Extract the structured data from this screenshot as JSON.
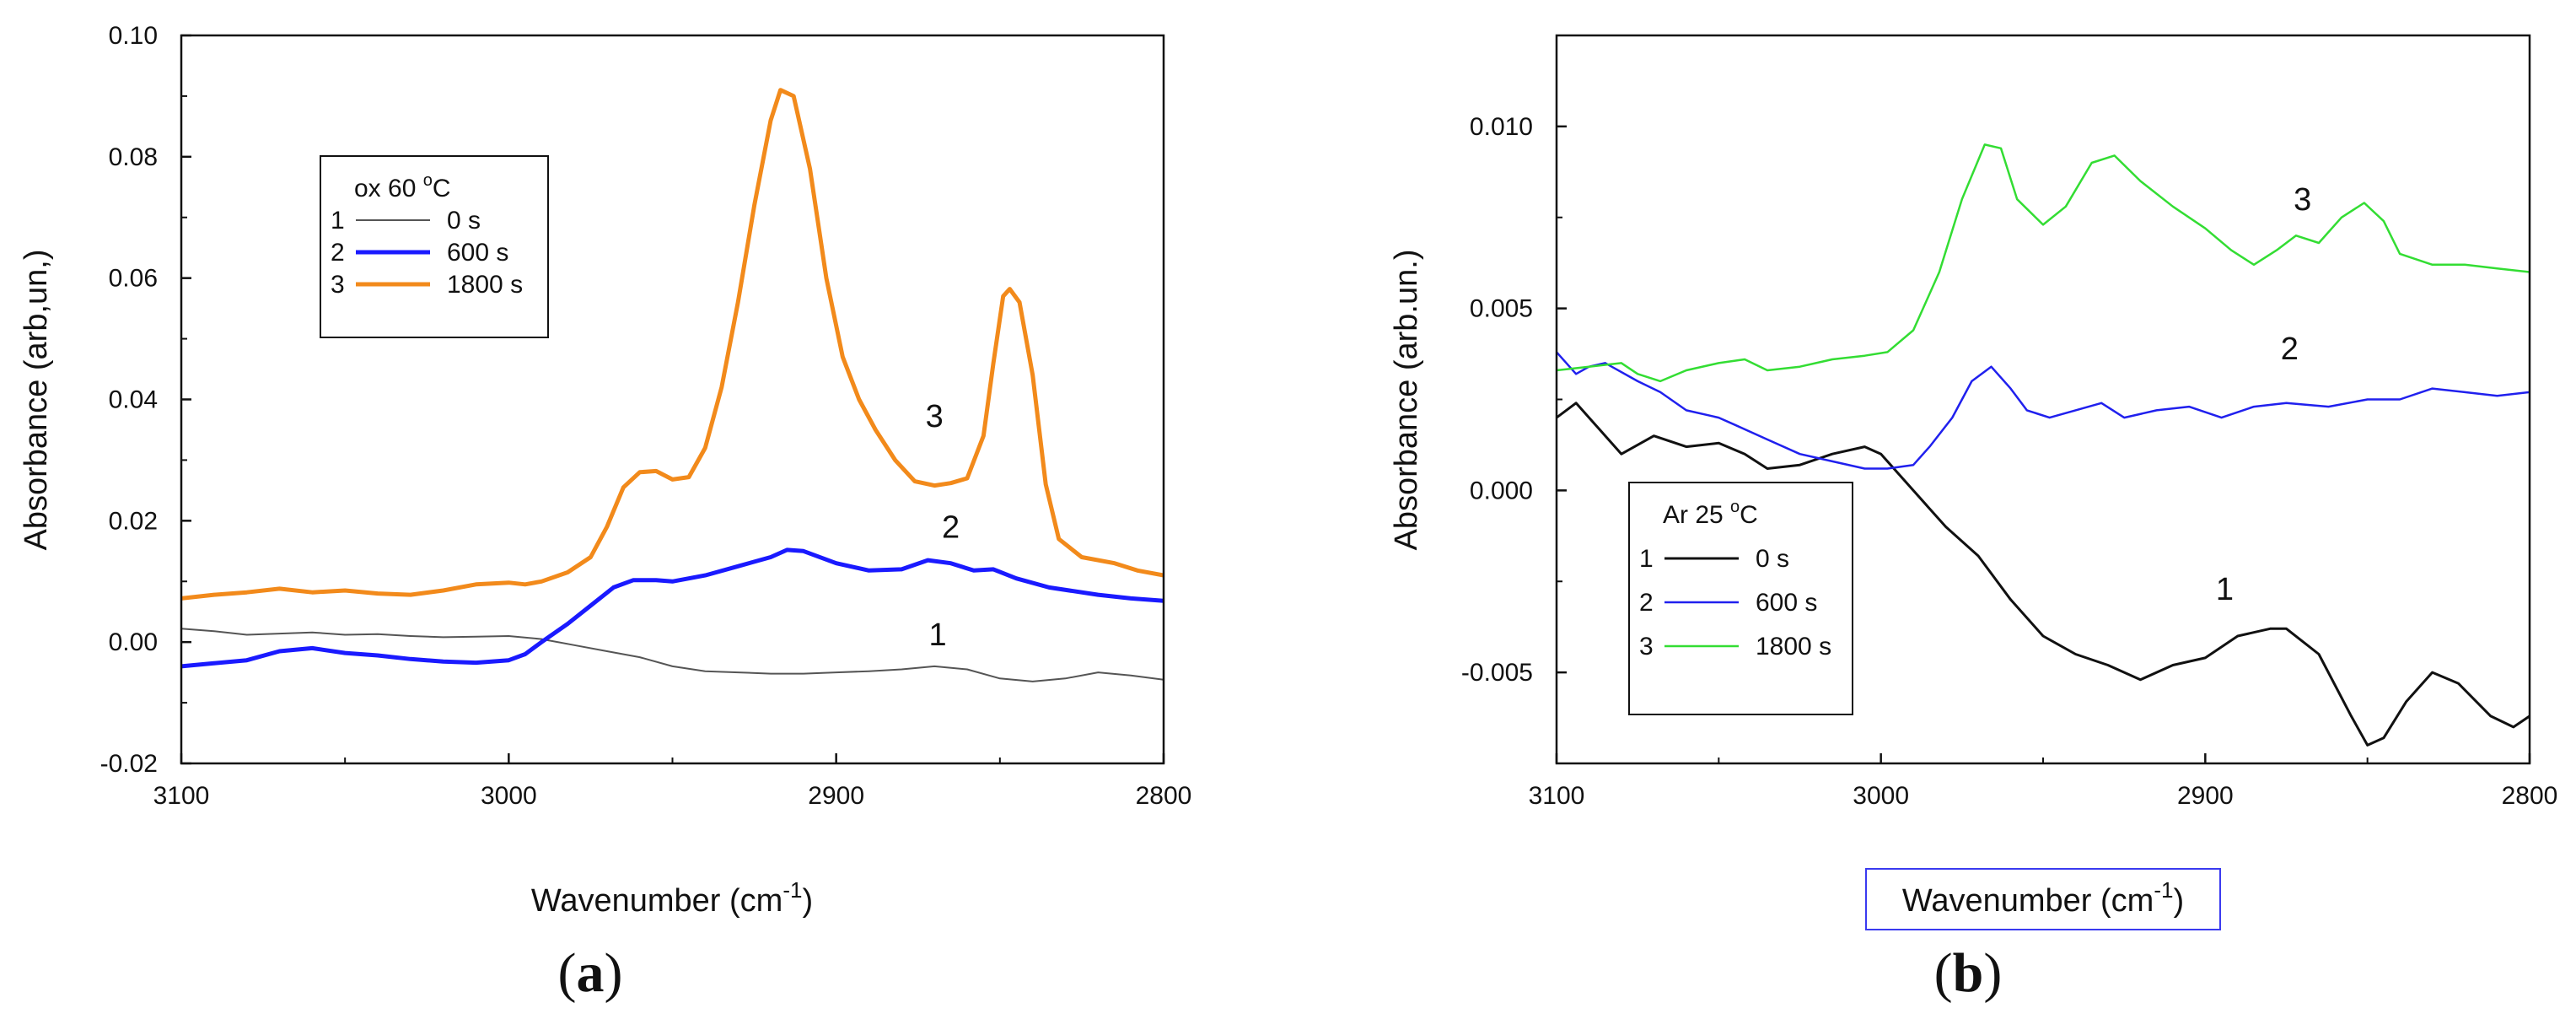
{
  "chart_data": [
    {
      "id": "a",
      "type": "line",
      "panel_label": "a",
      "title": "",
      "xlabel": "Wavenumber (cm",
      "xlabel_sup": "-1",
      "xlabel_suffix": ")",
      "ylabel": "Absorbance (arb,un,)",
      "xlim": [
        3100,
        2800
      ],
      "ylim": [
        -0.02,
        0.1
      ],
      "xticks": [
        3100,
        3000,
        2900,
        2800
      ],
      "xtick_labels": [
        "3100",
        "3000",
        "2900",
        "2800"
      ],
      "yticks": [
        -0.02,
        0.0,
        0.02,
        0.04,
        0.06,
        0.08,
        0.1
      ],
      "ytick_labels": [
        "-0.02",
        "0.00",
        "0.02",
        "0.04",
        "0.06",
        "0.08",
        "0.10"
      ],
      "legend": {
        "title": "ox 60 ",
        "title_sup": "o",
        "title_suffix": "C",
        "location": "upper-left",
        "entries": [
          {
            "number": "1",
            "label": "0 s"
          },
          {
            "number": "2",
            "label": "600 s"
          },
          {
            "number": "3",
            "label": "1800 s"
          }
        ]
      },
      "series": [
        {
          "name": "0 s",
          "number": "1",
          "label_at": [
            2869,
            -0.0005
          ],
          "color": "#555555",
          "width": 2,
          "points": [
            [
              3100,
              0.0022
            ],
            [
              3090,
              0.0018
            ],
            [
              3080,
              0.0012
            ],
            [
              3070,
              0.0014
            ],
            [
              3060,
              0.0016
            ],
            [
              3050,
              0.0012
            ],
            [
              3040,
              0.0013
            ],
            [
              3030,
              0.001
            ],
            [
              3020,
              0.0008
            ],
            [
              3010,
              0.0009
            ],
            [
              3000,
              0.001
            ],
            [
              2990,
              0.0005
            ],
            [
              2980,
              -0.0005
            ],
            [
              2970,
              -0.0015
            ],
            [
              2960,
              -0.0025
            ],
            [
              2950,
              -0.004
            ],
            [
              2940,
              -0.0048
            ],
            [
              2930,
              -0.005
            ],
            [
              2920,
              -0.0052
            ],
            [
              2910,
              -0.0052
            ],
            [
              2900,
              -0.005
            ],
            [
              2890,
              -0.0048
            ],
            [
              2880,
              -0.0045
            ],
            [
              2870,
              -0.004
            ],
            [
              2860,
              -0.0045
            ],
            [
              2850,
              -0.006
            ],
            [
              2840,
              -0.0065
            ],
            [
              2830,
              -0.006
            ],
            [
              2820,
              -0.005
            ],
            [
              2810,
              -0.0055
            ],
            [
              2800,
              -0.0062
            ]
          ]
        },
        {
          "name": "600 s",
          "number": "2",
          "label_at": [
            2865,
            0.0172
          ],
          "color": "#1a1aff",
          "width": 5,
          "points": [
            [
              3100,
              -0.004
            ],
            [
              3090,
              -0.0035
            ],
            [
              3080,
              -0.003
            ],
            [
              3070,
              -0.0015
            ],
            [
              3060,
              -0.001
            ],
            [
              3050,
              -0.0018
            ],
            [
              3040,
              -0.0022
            ],
            [
              3030,
              -0.0028
            ],
            [
              3020,
              -0.0032
            ],
            [
              3010,
              -0.0034
            ],
            [
              3000,
              -0.003
            ],
            [
              2995,
              -0.002
            ],
            [
              2990,
              0.0
            ],
            [
              2982,
              0.003
            ],
            [
              2975,
              0.006
            ],
            [
              2968,
              0.009
            ],
            [
              2962,
              0.0102
            ],
            [
              2955,
              0.0102
            ],
            [
              2950,
              0.01
            ],
            [
              2940,
              0.011
            ],
            [
              2930,
              0.0125
            ],
            [
              2920,
              0.014
            ],
            [
              2915,
              0.0152
            ],
            [
              2910,
              0.015
            ],
            [
              2900,
              0.013
            ],
            [
              2890,
              0.0118
            ],
            [
              2880,
              0.012
            ],
            [
              2872,
              0.0135
            ],
            [
              2865,
              0.013
            ],
            [
              2858,
              0.0118
            ],
            [
              2852,
              0.012
            ],
            [
              2845,
              0.0105
            ],
            [
              2835,
              0.009
            ],
            [
              2820,
              0.0078
            ],
            [
              2810,
              0.0072
            ],
            [
              2800,
              0.0068
            ]
          ]
        },
        {
          "name": "1800 s",
          "number": "3",
          "label_at": [
            2870,
            0.0355
          ],
          "color": "#f28a1b",
          "width": 5,
          "points": [
            [
              3100,
              0.0072
            ],
            [
              3090,
              0.0078
            ],
            [
              3080,
              0.0082
            ],
            [
              3070,
              0.0088
            ],
            [
              3060,
              0.0082
            ],
            [
              3050,
              0.0085
            ],
            [
              3040,
              0.008
            ],
            [
              3030,
              0.0078
            ],
            [
              3020,
              0.0085
            ],
            [
              3010,
              0.0095
            ],
            [
              3000,
              0.0098
            ],
            [
              2995,
              0.0095
            ],
            [
              2990,
              0.01
            ],
            [
              2982,
              0.0115
            ],
            [
              2975,
              0.014
            ],
            [
              2970,
              0.019
            ],
            [
              2965,
              0.0255
            ],
            [
              2960,
              0.028
            ],
            [
              2955,
              0.0282
            ],
            [
              2950,
              0.0268
            ],
            [
              2945,
              0.0272
            ],
            [
              2940,
              0.032
            ],
            [
              2935,
              0.042
            ],
            [
              2930,
              0.056
            ],
            [
              2925,
              0.072
            ],
            [
              2920,
              0.086
            ],
            [
              2917,
              0.091
            ],
            [
              2913,
              0.09
            ],
            [
              2908,
              0.078
            ],
            [
              2903,
              0.06
            ],
            [
              2898,
              0.047
            ],
            [
              2893,
              0.04
            ],
            [
              2888,
              0.035
            ],
            [
              2882,
              0.03
            ],
            [
              2876,
              0.0265
            ],
            [
              2870,
              0.0258
            ],
            [
              2865,
              0.0262
            ],
            [
              2860,
              0.027
            ],
            [
              2855,
              0.034
            ],
            [
              2852,
              0.046
            ],
            [
              2849,
              0.057
            ],
            [
              2847,
              0.0582
            ],
            [
              2844,
              0.056
            ],
            [
              2840,
              0.044
            ],
            [
              2836,
              0.026
            ],
            [
              2832,
              0.017
            ],
            [
              2825,
              0.014
            ],
            [
              2815,
              0.013
            ],
            [
              2808,
              0.0118
            ],
            [
              2800,
              0.011
            ]
          ]
        }
      ]
    },
    {
      "id": "b",
      "type": "line",
      "panel_label": "b",
      "title": "",
      "xlabel": "Wavenumber (cm",
      "xlabel_sup": "-1",
      "xlabel_suffix": ")",
      "ylabel": "Absorbance (arb.un.)",
      "xlim": [
        3100,
        2800
      ],
      "ylim": [
        -0.0075,
        0.0125
      ],
      "xticks": [
        3100,
        3000,
        2900,
        2800
      ],
      "xtick_labels": [
        "3100",
        "3000",
        "2900",
        "2800"
      ],
      "yticks": [
        -0.005,
        0.0,
        0.005,
        0.01
      ],
      "ytick_labels": [
        "-0.005",
        "0.000",
        "0.005",
        "0.010"
      ],
      "legend": {
        "title": "Ar 25 ",
        "title_sup": "o",
        "title_suffix": "C",
        "location": "lower-left",
        "entries": [
          {
            "number": "1",
            "label": "0 s"
          },
          {
            "number": "2",
            "label": "600 s"
          },
          {
            "number": "3",
            "label": "1800 s"
          }
        ]
      },
      "series": [
        {
          "name": "0 s",
          "number": "1",
          "label_at": [
            2894,
            -0.003
          ],
          "color": "#111111",
          "width": 3,
          "points": [
            [
              3100,
              0.002
            ],
            [
              3094,
              0.0024
            ],
            [
              3088,
              0.0018
            ],
            [
              3080,
              0.001
            ],
            [
              3070,
              0.0015
            ],
            [
              3060,
              0.0012
            ],
            [
              3050,
              0.0013
            ],
            [
              3042,
              0.001
            ],
            [
              3035,
              0.0006
            ],
            [
              3025,
              0.0007
            ],
            [
              3015,
              0.001
            ],
            [
              3005,
              0.0012
            ],
            [
              3000,
              0.001
            ],
            [
              2990,
              0.0
            ],
            [
              2980,
              -0.001
            ],
            [
              2970,
              -0.0018
            ],
            [
              2960,
              -0.003
            ],
            [
              2950,
              -0.004
            ],
            [
              2940,
              -0.0045
            ],
            [
              2930,
              -0.0048
            ],
            [
              2920,
              -0.0052
            ],
            [
              2910,
              -0.0048
            ],
            [
              2900,
              -0.0046
            ],
            [
              2890,
              -0.004
            ],
            [
              2880,
              -0.0038
            ],
            [
              2875,
              -0.0038
            ],
            [
              2865,
              -0.0045
            ],
            [
              2855,
              -0.0062
            ],
            [
              2850,
              -0.007
            ],
            [
              2845,
              -0.0068
            ],
            [
              2838,
              -0.0058
            ],
            [
              2830,
              -0.005
            ],
            [
              2822,
              -0.0053
            ],
            [
              2812,
              -0.0062
            ],
            [
              2805,
              -0.0065
            ],
            [
              2800,
              -0.0062
            ]
          ]
        },
        {
          "name": "600 s",
          "number": "2",
          "label_at": [
            2874,
            0.0036
          ],
          "color": "#2020ee",
          "width": 2.5,
          "points": [
            [
              3100,
              0.0038
            ],
            [
              3094,
              0.0032
            ],
            [
              3090,
              0.0034
            ],
            [
              3085,
              0.0035
            ],
            [
              3075,
              0.003
            ],
            [
              3068,
              0.0027
            ],
            [
              3060,
              0.0022
            ],
            [
              3050,
              0.002
            ],
            [
              3045,
              0.0018
            ],
            [
              3035,
              0.0014
            ],
            [
              3025,
              0.001
            ],
            [
              3015,
              0.0008
            ],
            [
              3005,
              0.0006
            ],
            [
              2998,
              0.0006
            ],
            [
              2990,
              0.0007
            ],
            [
              2985,
              0.0012
            ],
            [
              2978,
              0.002
            ],
            [
              2972,
              0.003
            ],
            [
              2966,
              0.0034
            ],
            [
              2960,
              0.0028
            ],
            [
              2955,
              0.0022
            ],
            [
              2948,
              0.002
            ],
            [
              2940,
              0.0022
            ],
            [
              2932,
              0.0024
            ],
            [
              2925,
              0.002
            ],
            [
              2915,
              0.0022
            ],
            [
              2905,
              0.0023
            ],
            [
              2895,
              0.002
            ],
            [
              2885,
              0.0023
            ],
            [
              2875,
              0.0024
            ],
            [
              2862,
              0.0023
            ],
            [
              2850,
              0.0025
            ],
            [
              2840,
              0.0025
            ],
            [
              2830,
              0.0028
            ],
            [
              2820,
              0.0027
            ],
            [
              2810,
              0.0026
            ],
            [
              2800,
              0.0027
            ]
          ]
        },
        {
          "name": "1800 s",
          "number": "3",
          "label_at": [
            2870,
            0.0077
          ],
          "color": "#33dd33",
          "width": 2.5,
          "points": [
            [
              3100,
              0.0033
            ],
            [
              3090,
              0.0034
            ],
            [
              3080,
              0.0035
            ],
            [
              3075,
              0.0032
            ],
            [
              3068,
              0.003
            ],
            [
              3060,
              0.0033
            ],
            [
              3050,
              0.0035
            ],
            [
              3042,
              0.0036
            ],
            [
              3035,
              0.0033
            ],
            [
              3025,
              0.0034
            ],
            [
              3015,
              0.0036
            ],
            [
              3005,
              0.0037
            ],
            [
              2998,
              0.0038
            ],
            [
              2990,
              0.0044
            ],
            [
              2982,
              0.006
            ],
            [
              2975,
              0.008
            ],
            [
              2968,
              0.0095
            ],
            [
              2963,
              0.0094
            ],
            [
              2958,
              0.008
            ],
            [
              2950,
              0.0073
            ],
            [
              2943,
              0.0078
            ],
            [
              2935,
              0.009
            ],
            [
              2928,
              0.0092
            ],
            [
              2920,
              0.0085
            ],
            [
              2910,
              0.0078
            ],
            [
              2900,
              0.0072
            ],
            [
              2892,
              0.0066
            ],
            [
              2885,
              0.0062
            ],
            [
              2878,
              0.0066
            ],
            [
              2872,
              0.007
            ],
            [
              2865,
              0.0068
            ],
            [
              2858,
              0.0075
            ],
            [
              2851,
              0.0079
            ],
            [
              2845,
              0.0074
            ],
            [
              2840,
              0.0065
            ],
            [
              2830,
              0.0062
            ],
            [
              2820,
              0.0062
            ],
            [
              2810,
              0.0061
            ],
            [
              2800,
              0.006
            ]
          ]
        }
      ]
    }
  ]
}
